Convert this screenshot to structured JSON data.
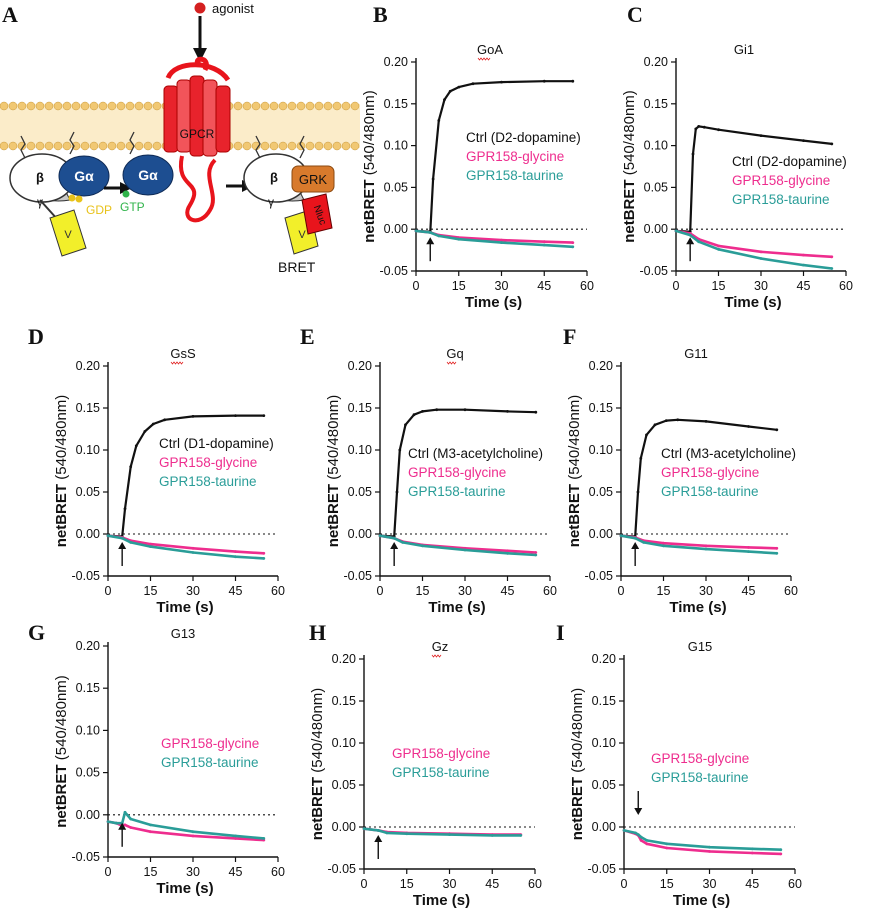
{
  "panel_a": {
    "label": "A",
    "agonist": "agonist",
    "gpcr": "GPCR",
    "beta": "β",
    "galpha": "Gα",
    "gdp": "GDP",
    "gtp": "GTP",
    "grk": "GRK",
    "nluc": "Nluc",
    "venus": "V",
    "gamma": "γ",
    "bret": "BRET"
  },
  "colors": {
    "ctrl": "#111111",
    "glycine": "#ee2d8e",
    "taurine": "#2a9d98"
  },
  "chart_data": [
    {
      "panel": "B",
      "type": "line",
      "title": "GoA",
      "xlabel": "Time (s)",
      "ylabel_bold": "netBRET",
      "ylabel_unit": " (540/480nm)",
      "xlim": [
        0,
        60
      ],
      "ylim": [
        -0.05,
        0.2
      ],
      "xticks": [
        "0",
        "15",
        "30",
        "45",
        "60"
      ],
      "yticks": [
        "-0.05",
        "0.00",
        "0.05",
        "0.10",
        "0.15",
        "0.20"
      ],
      "agonist_time": 5,
      "arrow": "up",
      "series": [
        {
          "name": "Ctrl (D2-dopamine)",
          "color": "#111111",
          "x": [
            0,
            5,
            6,
            8,
            10,
            12,
            15,
            20,
            30,
            45,
            55
          ],
          "y": [
            -0.002,
            -0.003,
            0.06,
            0.13,
            0.155,
            0.165,
            0.17,
            0.174,
            0.176,
            0.177,
            0.177
          ]
        },
        {
          "name": "GPR158-glycine",
          "color": "#ee2d8e",
          "x": [
            0,
            5,
            8,
            15,
            30,
            45,
            55
          ],
          "y": [
            -0.002,
            -0.004,
            -0.007,
            -0.01,
            -0.013,
            -0.015,
            -0.016
          ]
        },
        {
          "name": "GPR158-taurine",
          "color": "#2a9d98",
          "x": [
            0,
            5,
            8,
            15,
            30,
            45,
            55
          ],
          "y": [
            -0.002,
            -0.004,
            -0.008,
            -0.012,
            -0.016,
            -0.019,
            -0.021
          ]
        }
      ]
    },
    {
      "panel": "C",
      "type": "line",
      "title": "Gi1",
      "xlabel": "Time (s)",
      "ylabel_bold": "netBRET",
      "ylabel_unit": " (540/480nm)",
      "xlim": [
        0,
        60
      ],
      "ylim": [
        -0.05,
        0.2
      ],
      "xticks": [
        "0",
        "15",
        "30",
        "45",
        "60"
      ],
      "yticks": [
        "-0.05",
        "0.00",
        "0.05",
        "0.10",
        "0.15",
        "0.20"
      ],
      "agonist_time": 5,
      "arrow": "up",
      "series": [
        {
          "name": "Ctrl (D2-dopamine)",
          "color": "#111111",
          "x": [
            0,
            5,
            6,
            7,
            8,
            10,
            15,
            30,
            45,
            55
          ],
          "y": [
            -0.002,
            -0.003,
            0.09,
            0.12,
            0.123,
            0.122,
            0.119,
            0.112,
            0.106,
            0.102
          ]
        },
        {
          "name": "GPR158-glycine",
          "color": "#ee2d8e",
          "x": [
            0,
            5,
            8,
            15,
            30,
            45,
            55
          ],
          "y": [
            -0.002,
            -0.005,
            -0.012,
            -0.02,
            -0.027,
            -0.031,
            -0.033
          ]
        },
        {
          "name": "GPR158-taurine",
          "color": "#2a9d98",
          "x": [
            0,
            5,
            8,
            15,
            30,
            45,
            55
          ],
          "y": [
            -0.002,
            -0.007,
            -0.015,
            -0.024,
            -0.035,
            -0.043,
            -0.047
          ]
        }
      ]
    },
    {
      "panel": "D",
      "type": "line",
      "title": "GsS",
      "xlabel": "Time (s)",
      "ylabel_bold": "netBRET",
      "ylabel_unit": " (540/480nm)",
      "xlim": [
        0,
        60
      ],
      "ylim": [
        -0.05,
        0.2
      ],
      "xticks": [
        "0",
        "15",
        "30",
        "45",
        "60"
      ],
      "yticks": [
        "-0.05",
        "0.00",
        "0.05",
        "0.10",
        "0.15",
        "0.20"
      ],
      "agonist_time": 5,
      "arrow": "up",
      "series": [
        {
          "name": "Ctrl (D1-dopamine)",
          "color": "#111111",
          "x": [
            0,
            5,
            6,
            8,
            10,
            13,
            16,
            20,
            30,
            45,
            55
          ],
          "y": [
            -0.002,
            -0.003,
            0.03,
            0.08,
            0.105,
            0.122,
            0.131,
            0.136,
            0.14,
            0.141,
            0.141
          ]
        },
        {
          "name": "GPR158-glycine",
          "color": "#ee2d8e",
          "x": [
            0,
            5,
            8,
            15,
            30,
            45,
            55
          ],
          "y": [
            -0.002,
            -0.004,
            -0.008,
            -0.012,
            -0.017,
            -0.021,
            -0.023
          ]
        },
        {
          "name": "GPR158-taurine",
          "color": "#2a9d98",
          "x": [
            0,
            5,
            8,
            15,
            30,
            45,
            55
          ],
          "y": [
            -0.002,
            -0.005,
            -0.01,
            -0.015,
            -0.022,
            -0.027,
            -0.029
          ]
        }
      ]
    },
    {
      "panel": "E",
      "type": "line",
      "title": "Gq",
      "xlabel": "Time (s)",
      "ylabel_bold": "netBRET",
      "ylabel_unit": " (540/480nm)",
      "xlim": [
        0,
        60
      ],
      "ylim": [
        -0.05,
        0.2
      ],
      "xticks": [
        "0",
        "15",
        "30",
        "45",
        "60"
      ],
      "yticks": [
        "-0.05",
        "0.00",
        "0.05",
        "0.10",
        "0.15",
        "0.20"
      ],
      "agonist_time": 5,
      "arrow": "up",
      "series": [
        {
          "name": "Ctrl (M3-acetylcholine)",
          "color": "#111111",
          "x": [
            0,
            5,
            6,
            7,
            9,
            12,
            15,
            20,
            30,
            45,
            55
          ],
          "y": [
            -0.002,
            -0.003,
            0.05,
            0.1,
            0.13,
            0.142,
            0.146,
            0.148,
            0.148,
            0.146,
            0.145
          ]
        },
        {
          "name": "GPR158-glycine",
          "color": "#ee2d8e",
          "x": [
            0,
            5,
            8,
            15,
            30,
            45,
            55
          ],
          "y": [
            -0.002,
            -0.005,
            -0.009,
            -0.013,
            -0.017,
            -0.02,
            -0.022
          ]
        },
        {
          "name": "GPR158-taurine",
          "color": "#2a9d98",
          "x": [
            0,
            5,
            8,
            15,
            30,
            45,
            55
          ],
          "y": [
            -0.002,
            -0.005,
            -0.01,
            -0.014,
            -0.019,
            -0.023,
            -0.025
          ]
        }
      ]
    },
    {
      "panel": "F",
      "type": "line",
      "title": "G11",
      "xlabel": "Time (s)",
      "ylabel_bold": "netBRET",
      "ylabel_unit": " (540/480nm)",
      "xlim": [
        0,
        60
      ],
      "ylim": [
        -0.05,
        0.2
      ],
      "xticks": [
        "0",
        "15",
        "30",
        "45",
        "60"
      ],
      "yticks": [
        "-0.05",
        "0.00",
        "0.05",
        "0.10",
        "0.15",
        "0.20"
      ],
      "agonist_time": 5,
      "arrow": "up",
      "series": [
        {
          "name": "Ctrl (M3-acetylcholine)",
          "color": "#111111",
          "x": [
            0,
            5,
            6,
            7,
            9,
            12,
            16,
            20,
            30,
            45,
            55
          ],
          "y": [
            -0.002,
            -0.003,
            0.05,
            0.09,
            0.118,
            0.13,
            0.135,
            0.136,
            0.134,
            0.128,
            0.124
          ]
        },
        {
          "name": "GPR158-glycine",
          "color": "#ee2d8e",
          "x": [
            0,
            5,
            8,
            15,
            30,
            45,
            55
          ],
          "y": [
            -0.002,
            -0.004,
            -0.008,
            -0.011,
            -0.014,
            -0.016,
            -0.017
          ]
        },
        {
          "name": "GPR158-taurine",
          "color": "#2a9d98",
          "x": [
            0,
            5,
            8,
            15,
            30,
            45,
            55
          ],
          "y": [
            -0.002,
            -0.005,
            -0.01,
            -0.014,
            -0.018,
            -0.021,
            -0.023
          ]
        }
      ]
    },
    {
      "panel": "G",
      "type": "line",
      "title": "G13",
      "xlabel": "Time (s)",
      "ylabel_bold": "netBRET",
      "ylabel_unit": " (540/480nm)",
      "xlim": [
        0,
        60
      ],
      "ylim": [
        -0.05,
        0.2
      ],
      "xticks": [
        "0",
        "15",
        "30",
        "45",
        "60"
      ],
      "yticks": [
        "-0.05",
        "0.00",
        "0.05",
        "0.10",
        "0.15",
        "0.20"
      ],
      "agonist_time": 5,
      "arrow": "up",
      "series": [
        {
          "name": "GPR158-glycine",
          "color": "#ee2d8e",
          "x": [
            0,
            3,
            5,
            6,
            8,
            15,
            30,
            45,
            55
          ],
          "y": [
            -0.008,
            -0.01,
            -0.013,
            -0.012,
            -0.015,
            -0.02,
            -0.025,
            -0.028,
            -0.03
          ]
        },
        {
          "name": "GPR158-taurine",
          "color": "#2a9d98",
          "x": [
            0,
            3,
            5,
            6,
            8,
            15,
            30,
            45,
            55
          ],
          "y": [
            -0.008,
            -0.01,
            -0.01,
            0.003,
            -0.005,
            -0.012,
            -0.02,
            -0.025,
            -0.028
          ]
        }
      ]
    },
    {
      "panel": "H",
      "type": "line",
      "title": "Gz",
      "xlabel": "Time (s)",
      "ylabel_bold": "netBRET",
      "ylabel_unit": " (540/480nm)",
      "xlim": [
        0,
        60
      ],
      "ylim": [
        -0.05,
        0.2
      ],
      "xticks": [
        "0",
        "15",
        "30",
        "45",
        "60"
      ],
      "yticks": [
        "-0.05",
        "0.00",
        "0.05",
        "0.10",
        "0.15",
        "0.20"
      ],
      "agonist_time": 5,
      "arrow": "up",
      "series": [
        {
          "name": "GPR158-glycine",
          "color": "#ee2d8e",
          "x": [
            0,
            5,
            8,
            15,
            30,
            45,
            55
          ],
          "y": [
            -0.002,
            -0.004,
            -0.006,
            -0.007,
            -0.008,
            -0.009,
            -0.009
          ]
        },
        {
          "name": "GPR158-taurine",
          "color": "#2a9d98",
          "x": [
            0,
            5,
            8,
            15,
            30,
            45,
            55
          ],
          "y": [
            -0.002,
            -0.004,
            -0.007,
            -0.008,
            -0.009,
            -0.01,
            -0.01
          ]
        }
      ]
    },
    {
      "panel": "I",
      "type": "line",
      "title": "G15",
      "xlabel": "Time (s)",
      "ylabel_bold": "netBRET",
      "ylabel_unit": " (540/480nm)",
      "xlim": [
        0,
        60
      ],
      "ylim": [
        -0.05,
        0.2
      ],
      "xticks": [
        "0",
        "15",
        "30",
        "45",
        "60"
      ],
      "yticks": [
        "-0.05",
        "0.00",
        "0.05",
        "0.10",
        "0.15",
        "0.20"
      ],
      "agonist_time": 5,
      "arrow": "down",
      "series": [
        {
          "name": "GPR158-glycine",
          "color": "#ee2d8e",
          "x": [
            0,
            4,
            5,
            6,
            8,
            15,
            30,
            45,
            55
          ],
          "y": [
            -0.004,
            -0.008,
            -0.01,
            -0.016,
            -0.02,
            -0.025,
            -0.029,
            -0.031,
            -0.032
          ]
        },
        {
          "name": "GPR158-taurine",
          "color": "#2a9d98",
          "x": [
            0,
            4,
            5,
            6,
            8,
            15,
            30,
            45,
            55
          ],
          "y": [
            -0.004,
            -0.007,
            -0.009,
            -0.012,
            -0.016,
            -0.02,
            -0.024,
            -0.026,
            -0.027
          ]
        }
      ]
    }
  ]
}
